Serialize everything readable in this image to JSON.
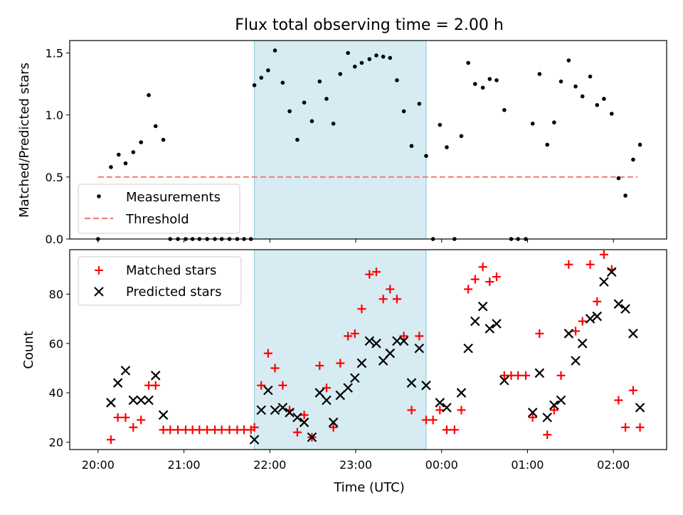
{
  "chart_data": {
    "type": "scatter",
    "title": "Flux total observing time = 2.00 h",
    "xlabel": "Time (UTC)",
    "x_unit": "hours relative to 00:00 UTC",
    "x_ticks": [
      {
        "value": -4,
        "label": "20:00"
      },
      {
        "value": -3,
        "label": "21:00"
      },
      {
        "value": -2,
        "label": "22:00"
      },
      {
        "value": -1,
        "label": "23:00"
      },
      {
        "value": 0,
        "label": "00:00"
      },
      {
        "value": 1,
        "label": "01:00"
      },
      {
        "value": 2,
        "label": "02:00"
      }
    ],
    "xlim": [
      -4.33,
      2.62
    ],
    "shaded_span": {
      "x0": -2.18,
      "x1": -0.18,
      "color": "#add8e6"
    },
    "panels": [
      {
        "name": "ratio",
        "ylabel": "Matched/Predicted stars",
        "ylim": [
          0,
          1.6
        ],
        "y_ticks": [
          {
            "value": 0,
            "label": "0.0"
          },
          {
            "value": 0.5,
            "label": "0.5"
          },
          {
            "value": 1.0,
            "label": "1.0"
          },
          {
            "value": 1.5,
            "label": "1.5"
          }
        ],
        "legend": {
          "location": "lower-left",
          "entries": [
            "Measurements",
            "Threshold"
          ]
        },
        "threshold": {
          "name": "Threshold",
          "y": 0.5,
          "x0": -4.0,
          "x1": 2.28,
          "color": "#f08080"
        },
        "measurements": {
          "name": "Measurements",
          "color": "#000000",
          "x": [
            -4.0,
            -3.85,
            -3.76,
            -3.68,
            -3.59,
            -3.5,
            -3.41,
            -3.33,
            -3.24,
            -3.16,
            -3.07,
            -2.98,
            -2.9,
            -2.82,
            -2.73,
            -2.64,
            -2.56,
            -2.47,
            -2.38,
            -2.3,
            -2.22,
            -2.18,
            -2.1,
            -2.02,
            -1.94,
            -1.85,
            -1.77,
            -1.68,
            -1.6,
            -1.51,
            -1.42,
            -1.34,
            -1.26,
            -1.18,
            -1.09,
            -1.01,
            -0.93,
            -0.84,
            -0.76,
            -0.68,
            -0.6,
            -0.52,
            -0.44,
            -0.35,
            -0.26,
            -0.18,
            -0.1,
            -0.02,
            0.06,
            0.15,
            0.23,
            0.31,
            0.39,
            0.48,
            0.56,
            0.64,
            0.73,
            0.81,
            0.89,
            0.98,
            1.06,
            1.14,
            1.23,
            1.31,
            1.39,
            1.48,
            1.56,
            1.64,
            1.73,
            1.81,
            1.89,
            1.98,
            2.06,
            2.14,
            2.23,
            2.31
          ],
          "y": [
            0.0,
            0.58,
            0.68,
            0.61,
            0.7,
            0.78,
            1.16,
            0.91,
            0.8,
            0.0,
            0.0,
            0.0,
            0.0,
            0.0,
            0.0,
            0.0,
            0.0,
            0.0,
            0.0,
            0.0,
            0.0,
            1.24,
            1.3,
            1.36,
            1.52,
            1.26,
            1.03,
            0.8,
            1.1,
            0.95,
            1.27,
            1.13,
            0.93,
            1.33,
            1.5,
            1.39,
            1.42,
            1.45,
            1.48,
            1.47,
            1.46,
            1.28,
            1.03,
            0.75,
            1.09,
            0.67,
            0.0,
            0.92,
            0.74,
            0.0,
            0.83,
            1.42,
            1.25,
            1.22,
            1.29,
            1.28,
            1.04,
            0.0,
            0.0,
            0.0,
            0.93,
            1.33,
            0.76,
            0.94,
            1.27,
            1.44,
            1.23,
            1.15,
            1.31,
            1.08,
            1.13,
            1.01,
            0.49,
            0.35,
            0.64,
            0.76
          ]
        }
      },
      {
        "name": "count",
        "ylabel": "Count",
        "ylim": [
          17,
          98
        ],
        "y_ticks": [
          {
            "value": 20,
            "label": "20"
          },
          {
            "value": 40,
            "label": "40"
          },
          {
            "value": 60,
            "label": "60"
          },
          {
            "value": 80,
            "label": "80"
          }
        ],
        "legend": {
          "location": "upper-left",
          "entries": [
            "Matched stars",
            "Predicted stars"
          ]
        },
        "series": [
          {
            "name": "Matched stars",
            "marker": "+",
            "color": "#ff0000",
            "x": [
              -3.85,
              -3.77,
              -3.68,
              -3.59,
              -3.5,
              -3.41,
              -3.33,
              -3.24,
              -3.16,
              -3.07,
              -2.98,
              -2.9,
              -2.82,
              -2.73,
              -2.64,
              -2.56,
              -2.47,
              -2.38,
              -2.3,
              -2.22,
              -2.18,
              -2.1,
              -2.02,
              -1.94,
              -1.85,
              -1.77,
              -1.68,
              -1.6,
              -1.51,
              -1.42,
              -1.34,
              -1.26,
              -1.18,
              -1.09,
              -1.01,
              -0.93,
              -0.84,
              -0.76,
              -0.68,
              -0.6,
              -0.52,
              -0.44,
              -0.35,
              -0.26,
              -0.18,
              -0.1,
              -0.02,
              0.06,
              0.15,
              0.23,
              0.31,
              0.39,
              0.48,
              0.56,
              0.64,
              0.73,
              0.81,
              0.89,
              0.98,
              1.06,
              1.14,
              1.23,
              1.31,
              1.39,
              1.48,
              1.56,
              1.64,
              1.73,
              1.81,
              1.89,
              1.98,
              2.06,
              2.14,
              2.23,
              2.31
            ],
            "y": [
              21,
              30,
              30,
              26,
              29,
              43,
              43,
              25,
              25,
              25,
              25,
              25,
              25,
              25,
              25,
              25,
              25,
              25,
              25,
              25,
              26,
              43,
              56,
              50,
              43,
              33,
              24,
              31,
              22,
              51,
              42,
              26,
              52,
              63,
              64,
              74,
              88,
              89,
              78,
              82,
              78,
              63,
              33,
              63,
              29,
              29,
              33,
              25,
              25,
              33,
              82,
              86,
              91,
              85,
              87,
              47,
              47,
              47,
              47,
              30,
              64,
              23,
              33,
              47,
              92,
              65,
              69,
              92,
              77,
              96,
              90,
              37,
              26,
              41,
              26
            ]
          },
          {
            "name": "Predicted stars",
            "marker": "x",
            "color": "#000000",
            "x": [
              -3.85,
              -3.77,
              -3.68,
              -3.59,
              -3.5,
              -3.41,
              -3.33,
              -3.24,
              -2.18,
              -2.1,
              -2.02,
              -1.94,
              -1.85,
              -1.77,
              -1.68,
              -1.6,
              -1.51,
              -1.42,
              -1.34,
              -1.26,
              -1.18,
              -1.09,
              -1.01,
              -0.93,
              -0.84,
              -0.76,
              -0.68,
              -0.6,
              -0.52,
              -0.44,
              -0.35,
              -0.26,
              -0.18,
              -0.02,
              0.06,
              0.23,
              0.31,
              0.39,
              0.48,
              0.56,
              0.64,
              0.73,
              1.06,
              1.14,
              1.23,
              1.31,
              1.39,
              1.48,
              1.56,
              1.64,
              1.73,
              1.81,
              1.89,
              1.98,
              2.06,
              2.14,
              2.23,
              2.31
            ],
            "y": [
              36,
              44,
              49,
              37,
              37,
              37,
              47,
              31,
              21,
              33,
              41,
              33,
              34,
              32,
              30,
              28,
              22,
              40,
              37,
              28,
              39,
              42,
              46,
              52,
              61,
              60,
              53,
              56,
              61,
              61,
              44,
              58,
              43,
              36,
              34,
              40,
              58,
              69,
              75,
              66,
              68,
              45,
              32,
              48,
              30,
              35,
              37,
              64,
              53,
              60,
              70,
              71,
              85,
              89,
              76,
              74,
              64,
              34
            ]
          }
        ]
      }
    ]
  }
}
